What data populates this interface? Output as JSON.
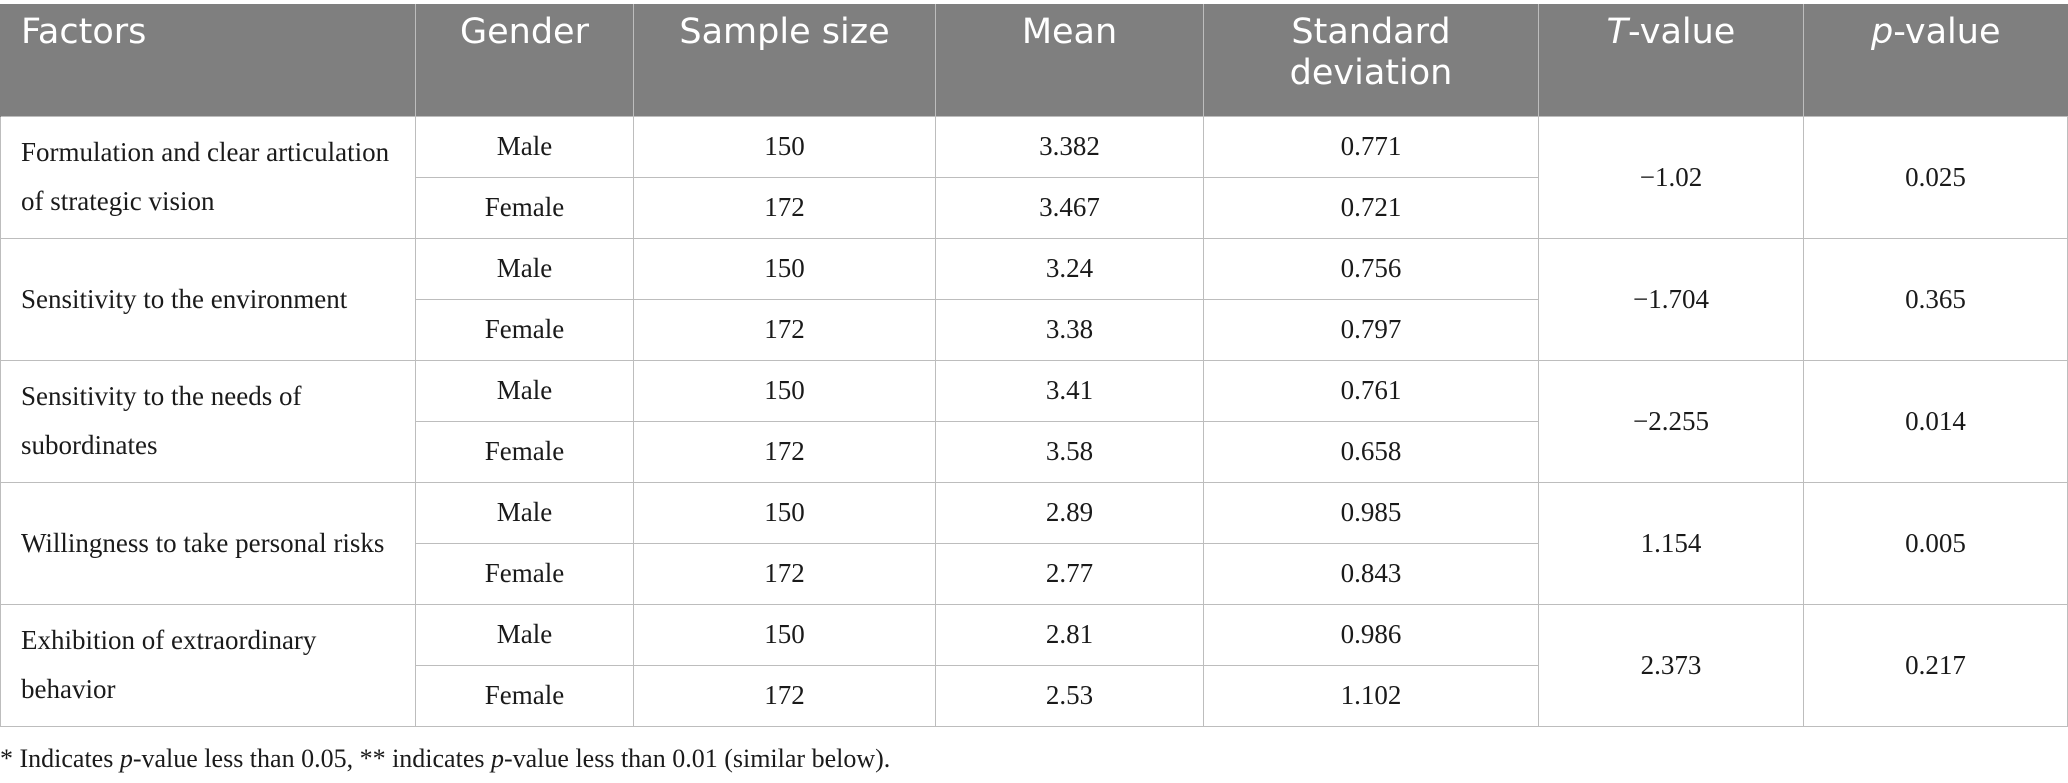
{
  "table": {
    "headers": {
      "factors": "Factors",
      "gender": "Gender",
      "sample_size": "Sample size",
      "mean": "Mean",
      "std_line1": "Standard",
      "std_line2": "deviation",
      "t_italic": "T",
      "t_rest": "-value",
      "p_italic": "p",
      "p_rest": "-value"
    },
    "rows": [
      {
        "factor": "Formulation and clear articulation of strategic vision",
        "male": {
          "gender": "Male",
          "n": "150",
          "mean": "3.382",
          "sd": "0.771"
        },
        "female": {
          "gender": "Female",
          "n": "172",
          "mean": "3.467",
          "sd": "0.721"
        },
        "t": "−1.02",
        "p": "0.025"
      },
      {
        "factor": "Sensitivity to the environment",
        "male": {
          "gender": "Male",
          "n": "150",
          "mean": "3.24",
          "sd": "0.756"
        },
        "female": {
          "gender": "Female",
          "n": "172",
          "mean": "3.38",
          "sd": "0.797"
        },
        "t": "−1.704",
        "p": "0.365"
      },
      {
        "factor": "Sensitivity to the needs of subordinates",
        "male": {
          "gender": "Male",
          "n": "150",
          "mean": "3.41",
          "sd": "0.761"
        },
        "female": {
          "gender": "Female",
          "n": "172",
          "mean": "3.58",
          "sd": "0.658"
        },
        "t": "−2.255",
        "p": "0.014"
      },
      {
        "factor": "Willingness to take personal risks",
        "male": {
          "gender": "Male",
          "n": "150",
          "mean": "2.89",
          "sd": "0.985"
        },
        "female": {
          "gender": "Female",
          "n": "172",
          "mean": "2.77",
          "sd": "0.843"
        },
        "t": "1.154",
        "p": "0.005"
      },
      {
        "factor": "Exhibition of extraordinary behavior",
        "male": {
          "gender": "Male",
          "n": "150",
          "mean": "2.81",
          "sd": "0.986"
        },
        "female": {
          "gender": "Female",
          "n": "172",
          "mean": "2.53",
          "sd": "1.102"
        },
        "t": "2.373",
        "p": "0.217"
      }
    ]
  },
  "footnote": {
    "part1": "* Indicates ",
    "p1": "p",
    "part2": "-value less than 0.05, ** indicates ",
    "p2": "p",
    "part3": "-value less than 0.01 (similar below)."
  }
}
